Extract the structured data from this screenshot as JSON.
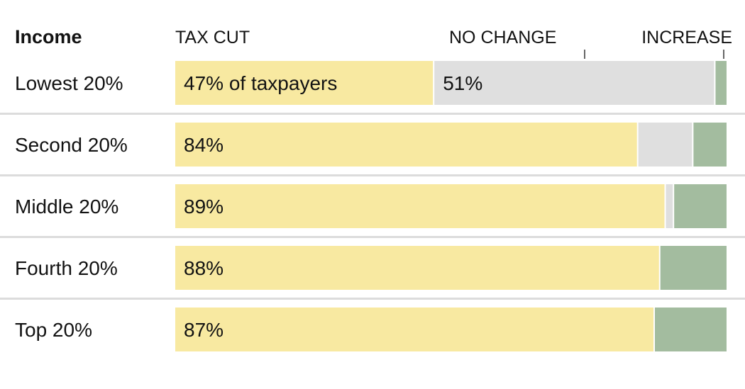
{
  "chart_data": {
    "type": "bar",
    "orientation": "horizontal",
    "stacked": true,
    "row_header": "Income",
    "categories": [
      "Lowest 20%",
      "Second 20%",
      "Middle 20%",
      "Fourth 20%",
      "Top 20%"
    ],
    "series": [
      {
        "name": "TAX CUT",
        "values": [
          47,
          84,
          89,
          88,
          87
        ],
        "color": "#f8e9a1"
      },
      {
        "name": "NO CHANGE",
        "values": [
          51,
          10,
          1.5,
          0,
          0
        ],
        "color": "#dfdfdf"
      },
      {
        "name": "INCREASE",
        "values": [
          2,
          6,
          9.5,
          12,
          13
        ],
        "color": "#a3bc9f"
      }
    ],
    "bar_labels": [
      {
        "row": 0,
        "series": "TAX CUT",
        "text": "47% of taxpayers"
      },
      {
        "row": 0,
        "series": "NO CHANGE",
        "text": "51%"
      },
      {
        "row": 1,
        "series": "TAX CUT",
        "text": "84%"
      },
      {
        "row": 2,
        "series": "TAX CUT",
        "text": "89%"
      },
      {
        "row": 3,
        "series": "TAX CUT",
        "text": "88%"
      },
      {
        "row": 4,
        "series": "TAX CUT",
        "text": "87%"
      }
    ],
    "xlim": [
      0,
      100
    ],
    "unit": "% of taxpayers",
    "colors": {
      "text": "#121212",
      "divider": "#dcdcdc",
      "tick": "#333333",
      "background": "#ffffff"
    }
  }
}
